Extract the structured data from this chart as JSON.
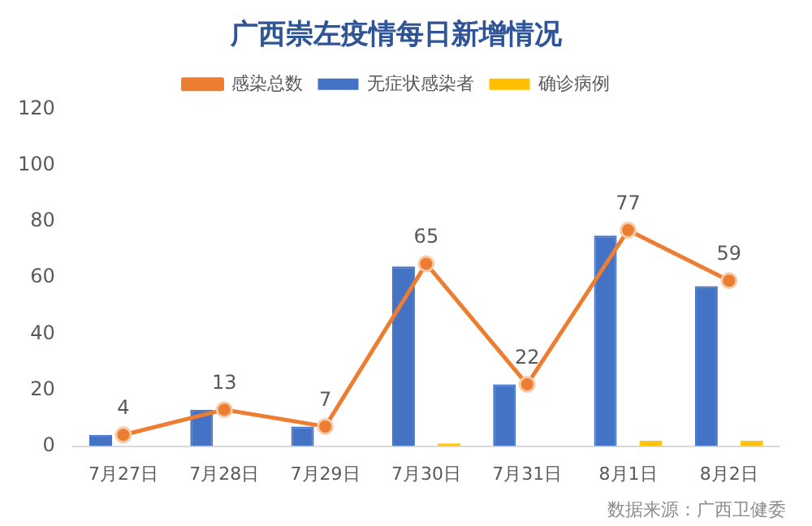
{
  "chart_data": {
    "type": "bar",
    "title": "广西崇左疫情每日新增情况",
    "categories": [
      "7月27日",
      "7月28日",
      "7月29日",
      "7月30日",
      "7月31日",
      "8月1日",
      "8月2日"
    ],
    "series": [
      {
        "name": "无症状感染者",
        "color": "#4472c4",
        "values": [
          4,
          13,
          7,
          64,
          22,
          75,
          57
        ]
      },
      {
        "name": "确诊病例",
        "color": "#ffc000",
        "values": [
          0,
          0,
          0,
          1,
          0,
          2,
          2
        ]
      },
      {
        "name": "感染总数",
        "type": "line",
        "color": "#ed7d31",
        "marker": "circle",
        "values": [
          4,
          13,
          7,
          65,
          22,
          77,
          59
        ],
        "value_labels": [
          "4",
          "13",
          "7",
          "65",
          "22",
          "77",
          "59"
        ]
      }
    ],
    "ylim": [
      0,
      120
    ],
    "yticks": [
      0,
      20,
      40,
      60,
      80,
      100,
      120
    ],
    "grid": false,
    "legend": "top",
    "annotations": [
      "数据来源：广西卫健委"
    ]
  }
}
